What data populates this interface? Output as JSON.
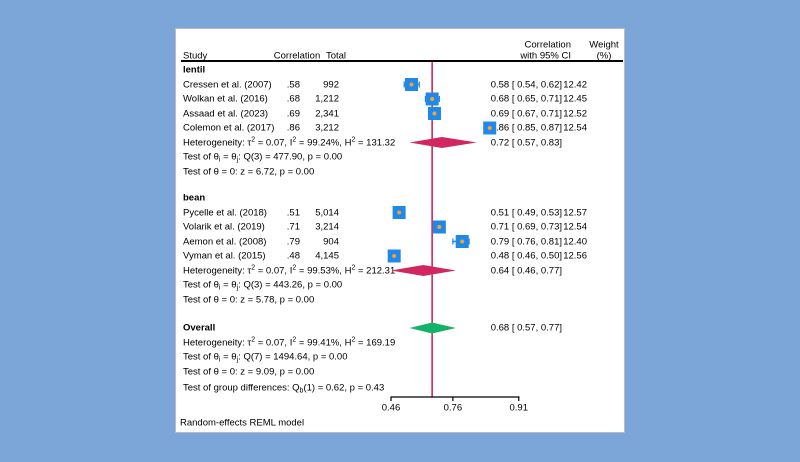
{
  "colors": {
    "background_blue": "#7ca6d8",
    "panel_white": "#ffffff",
    "marker_blue": "#1f88e8",
    "marker_dot_gold": "#f2a431",
    "diamond_crimson": "#d2265f",
    "overall_diamond_green": "#12b26a",
    "null_line_crimson": "#d2265f",
    "axis_black": "#000000"
  },
  "chart_data": {
    "type": "forest",
    "model_note": "Random-effects REML model",
    "columns": {
      "study": "Study",
      "correlation": "Correlation",
      "total": "Total",
      "ci_line1": "Correlation",
      "ci_line2": "with 95% CI",
      "weight_line1": "Weight",
      "weight_line2": "(%)"
    },
    "x_axis": {
      "scale": "fisher-z (atanh), back-transformed correlation labels",
      "ticks": [
        0.46,
        0.76,
        0.91
      ],
      "tick_labels": [
        "0.46",
        "0.76",
        "0.91"
      ],
      "range": [
        0.46,
        0.91
      ]
    },
    "overall_effect_line": 0.68,
    "groups": [
      {
        "label": "lentil",
        "studies": [
          {
            "label": "Cressen et al. (2007)",
            "correlation": ".58",
            "total": "992",
            "est": 0.58,
            "lo": 0.54,
            "hi": 0.62,
            "ci_text": "0.58 [ 0.54, 0.62]",
            "weight": "12.42"
          },
          {
            "label": "Wolkan et al. (2016)",
            "correlation": ".68",
            "total": "1,212",
            "est": 0.68,
            "lo": 0.65,
            "hi": 0.71,
            "ci_text": "0.68 [ 0.65, 0.71]",
            "weight": "12.45"
          },
          {
            "label": "Assaad et al. (2023)",
            "correlation": ".69",
            "total": "2,341",
            "est": 0.69,
            "lo": 0.67,
            "hi": 0.71,
            "ci_text": "0.69 [ 0.67, 0.71]",
            "weight": "12.52"
          },
          {
            "label": "Colemon et al. (2017)",
            "correlation": ".86",
            "total": "3,212",
            "est": 0.86,
            "lo": 0.85,
            "hi": 0.87,
            "ci_text": "0.86 [ 0.85, 0.87]",
            "weight": "12.54"
          }
        ],
        "heterogeneity": [
          {
            "t": "Heterogeneity: τ"
          },
          {
            "t": "2",
            "v": "sup"
          },
          {
            "t": " = 0.07, I"
          },
          {
            "t": "2",
            "v": "sup"
          },
          {
            "t": " = 99.24%, H"
          },
          {
            "t": "2",
            "v": "sup"
          },
          {
            "t": " = 131.32"
          }
        ],
        "diamond": {
          "est": 0.72,
          "lo": 0.57,
          "hi": 0.83,
          "ci_text": "0.72 [ 0.57, 0.83]"
        },
        "tests": [
          [
            {
              "t": "Test of θ"
            },
            {
              "t": "i",
              "v": "sub"
            },
            {
              "t": " = θ"
            },
            {
              "t": "j",
              "v": "sub"
            },
            {
              "t": ": Q(3) = 477.90, p = 0.00"
            }
          ],
          [
            {
              "t": "Test of θ = 0: z = 6.72, p = 0.00"
            }
          ]
        ]
      },
      {
        "label": "bean",
        "studies": [
          {
            "label": "Pycelle et al. (2018)",
            "correlation": ".51",
            "total": "5,014",
            "est": 0.51,
            "lo": 0.49,
            "hi": 0.53,
            "ci_text": "0.51 [ 0.49, 0.53]",
            "weight": "12.57"
          },
          {
            "label": "Volarik et al. (2019)",
            "correlation": ".71",
            "total": "3,214",
            "est": 0.71,
            "lo": 0.69,
            "hi": 0.73,
            "ci_text": "0.71 [ 0.69, 0.73]",
            "weight": "12.54"
          },
          {
            "label": "Aemon et al. (2008)",
            "correlation": ".79",
            "total": "904",
            "est": 0.79,
            "lo": 0.76,
            "hi": 0.81,
            "ci_text": "0.79 [ 0.76, 0.81]",
            "weight": "12.40"
          },
          {
            "label": "Vyman et al. (2015)",
            "correlation": ".48",
            "total": "4,145",
            "est": 0.48,
            "lo": 0.46,
            "hi": 0.5,
            "ci_text": "0.48 [ 0.46, 0.50]",
            "weight": "12.56"
          }
        ],
        "heterogeneity": [
          {
            "t": "Heterogeneity: τ"
          },
          {
            "t": "2",
            "v": "sup"
          },
          {
            "t": " = 0.07, I"
          },
          {
            "t": "2",
            "v": "sup"
          },
          {
            "t": " = 99.53%, H"
          },
          {
            "t": "2",
            "v": "sup"
          },
          {
            "t": " = 212.31"
          }
        ],
        "diamond": {
          "est": 0.64,
          "lo": 0.46,
          "hi": 0.77,
          "ci_text": "0.64 [ 0.46, 0.77]"
        },
        "tests": [
          [
            {
              "t": "Test of θ"
            },
            {
              "t": "i",
              "v": "sub"
            },
            {
              "t": " = θ"
            },
            {
              "t": "j",
              "v": "sub"
            },
            {
              "t": ": Q(3) = 443.26, p = 0.00"
            }
          ],
          [
            {
              "t": "Test of θ = 0: z = 5.78, p = 0.00"
            }
          ]
        ]
      }
    ],
    "overall": {
      "label": "Overall",
      "diamond": {
        "est": 0.68,
        "lo": 0.57,
        "hi": 0.77,
        "ci_text": "0.68 [ 0.57, 0.77]"
      },
      "heterogeneity": [
        {
          "t": "Heterogeneity: τ"
        },
        {
          "t": "2",
          "v": "sup"
        },
        {
          "t": " = 0.07, I"
        },
        {
          "t": "2",
          "v": "sup"
        },
        {
          "t": " = 99.41%, H"
        },
        {
          "t": "2",
          "v": "sup"
        },
        {
          "t": " = 169.19"
        }
      ],
      "tests": [
        [
          {
            "t": "Test of θ"
          },
          {
            "t": "i",
            "v": "sub"
          },
          {
            "t": " = θ"
          },
          {
            "t": "j",
            "v": "sub"
          },
          {
            "t": ": Q(7) = 1494.64, p = 0.00"
          }
        ],
        [
          {
            "t": "Test of θ = 0: z = 9.09, p = 0.00"
          }
        ]
      ]
    },
    "group_difference": [
      {
        "t": "Test of group differences: Q"
      },
      {
        "t": "b",
        "v": "sub"
      },
      {
        "t": "(1) = 0.62, p = 0.43"
      }
    ]
  }
}
